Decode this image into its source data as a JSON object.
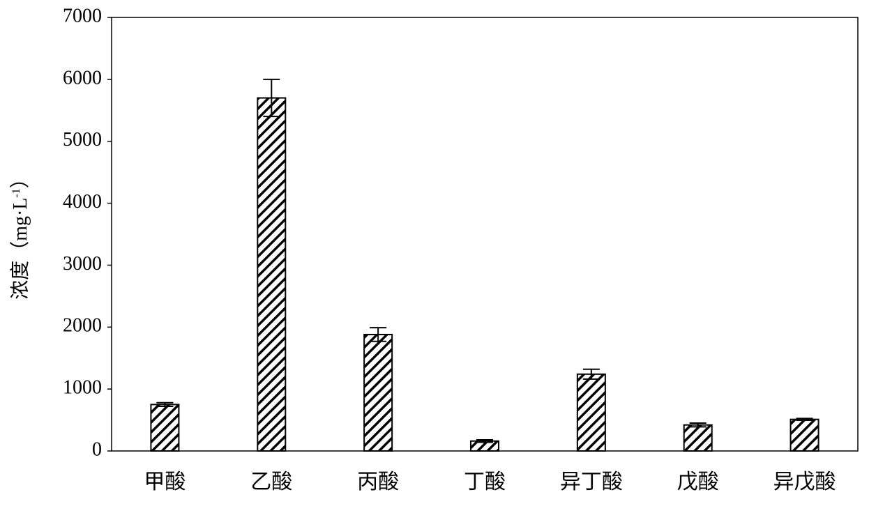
{
  "chart_data": {
    "type": "bar",
    "ylabel": "浓度（mg·L",
    "ylabel_sup": "-1",
    "ylabel_end": "）",
    "categories": [
      "甲酸",
      "乙酸",
      "丙酸",
      "丁酸",
      "异丁酸",
      "戊酸",
      "异戊酸"
    ],
    "values": [
      750,
      5700,
      1880,
      160,
      1240,
      420,
      510
    ],
    "errors": [
      30,
      300,
      110,
      20,
      80,
      30,
      15
    ],
    "color": "#000000",
    "ylim": [
      0,
      7000
    ],
    "yticks": [
      0,
      1000,
      2000,
      3000,
      4000,
      5000,
      6000,
      7000
    ],
    "grid": false
  }
}
